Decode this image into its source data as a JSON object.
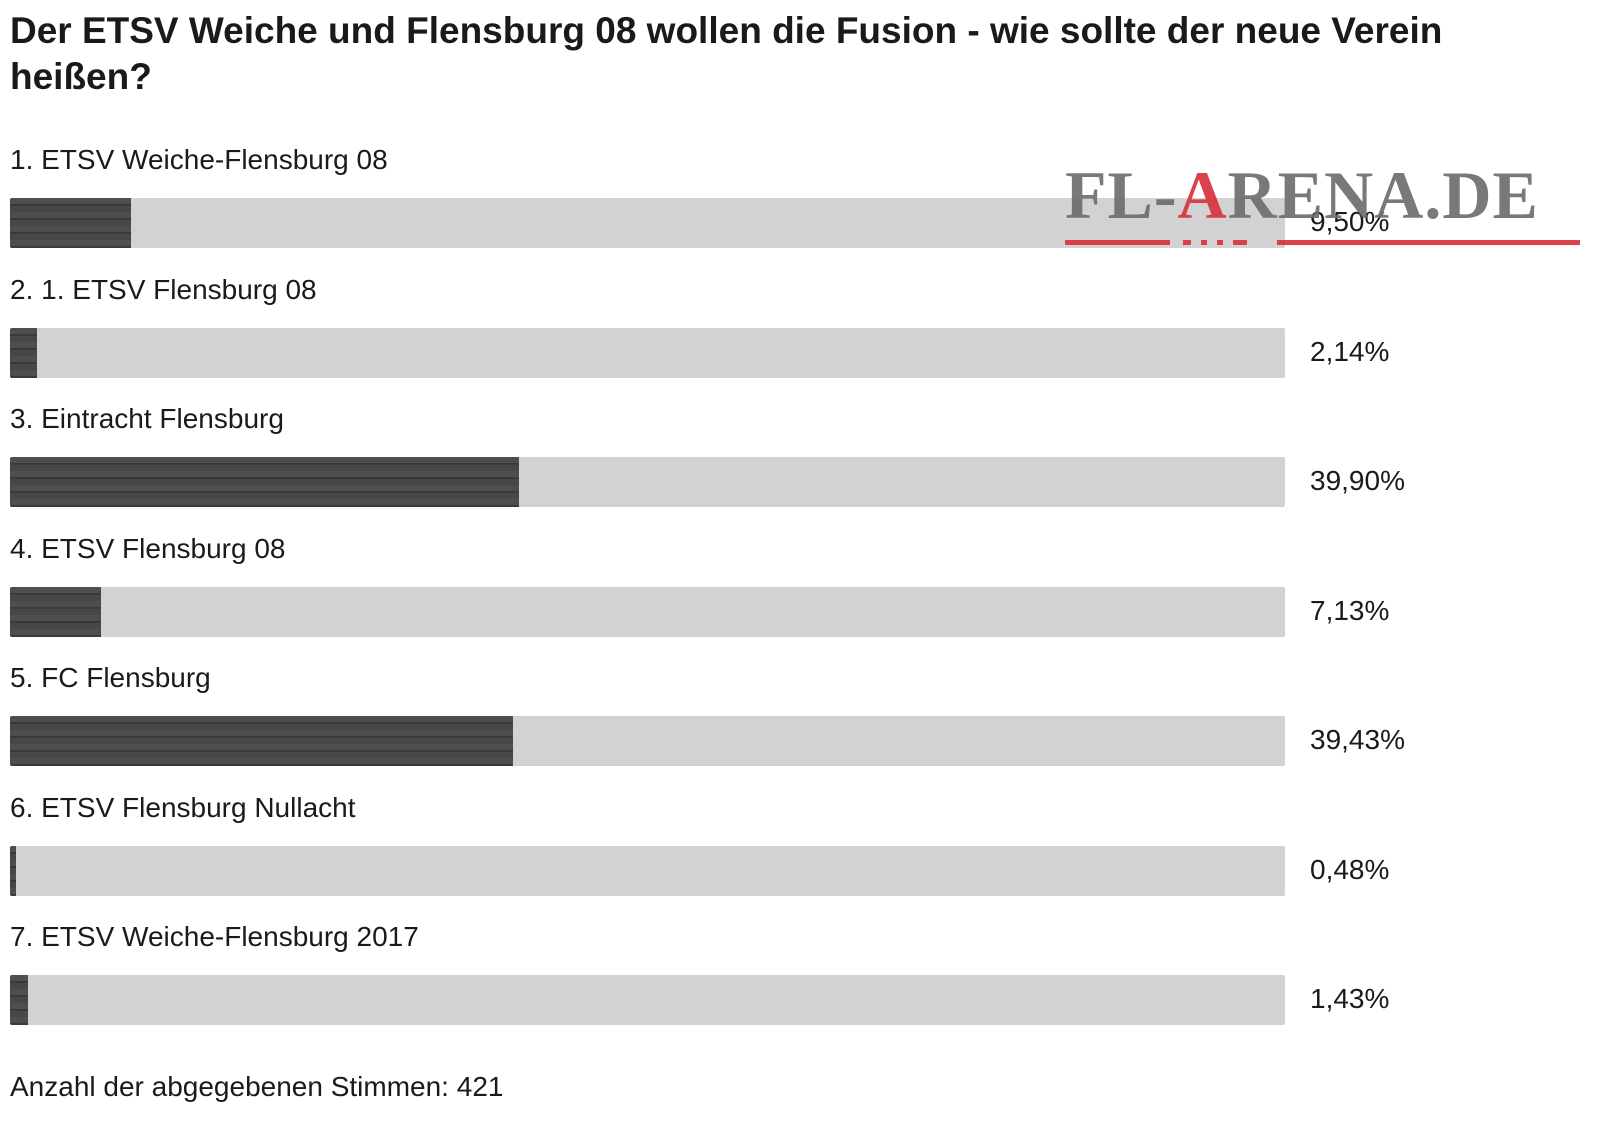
{
  "poll": {
    "title": "Der ETSV Weiche und Flensburg 08 wollen die Fusion - wie sollte der neue Verein heißen?",
    "options": [
      {
        "label": "1. ETSV Weiche-Flensburg 08",
        "percent_text": "9,50%",
        "value": 9.5
      },
      {
        "label": "2. 1. ETSV Flensburg 08",
        "percent_text": "2,14%",
        "value": 2.14
      },
      {
        "label": "3. Eintracht Flensburg",
        "percent_text": "39,90%",
        "value": 39.9
      },
      {
        "label": "4. ETSV Flensburg 08",
        "percent_text": "7,13%",
        "value": 7.13
      },
      {
        "label": "5. FC Flensburg",
        "percent_text": "39,43%",
        "value": 39.43
      },
      {
        "label": "6. ETSV Flensburg Nullacht",
        "percent_text": "0,48%",
        "value": 0.48
      },
      {
        "label": "7. ETSV Weiche-Flensburg 2017",
        "percent_text": "1,43%",
        "value": 1.43
      }
    ],
    "vote_count_text": "Anzahl der abgegebenen Stimmen: 421"
  },
  "watermark": {
    "text_before": "FL-",
    "text_accent": "A",
    "text_after": "RENA.DE",
    "accent_color": "#d8333e",
    "text_color": "#6e6e6e"
  },
  "colors": {
    "bar_fill": "#4a4a4a",
    "bar_track": "#d2d2d2"
  }
}
